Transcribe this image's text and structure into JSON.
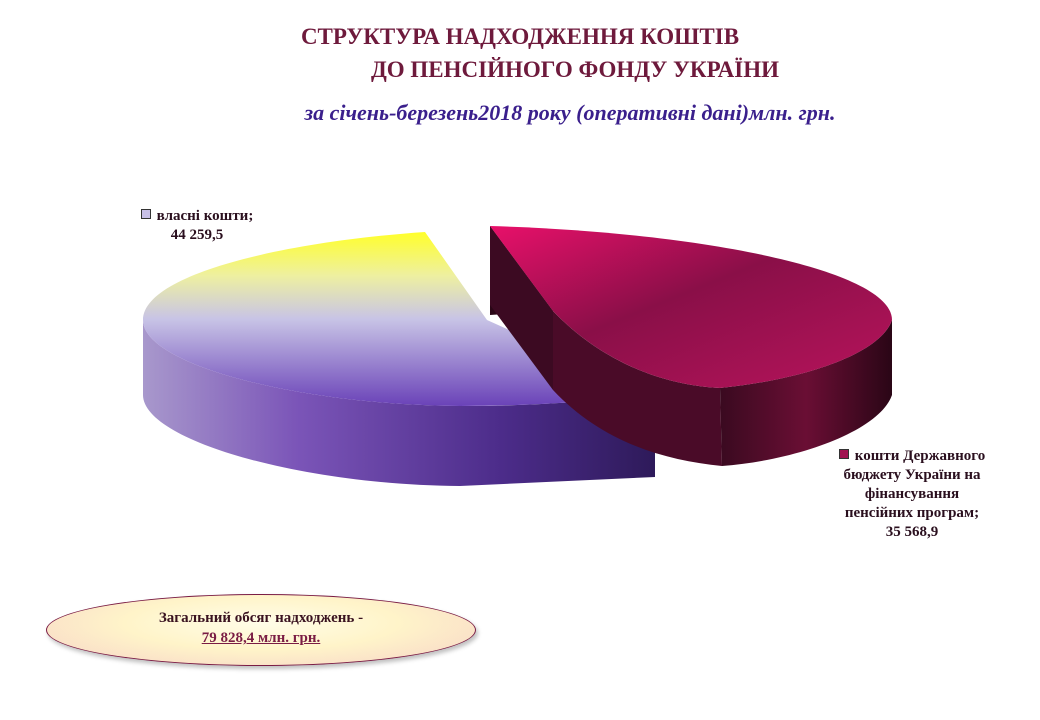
{
  "title_line1": "СТРУКТУРА  НАДХОДЖЕННЯ КОШТІВ",
  "title_line2": "ДО ПЕНСІЙНОГО ФОНДУ УКРАЇНИ",
  "subtitle": "за  січень-березень2018 року (оперативні дані)млн. грн.",
  "total_label": "Загальний обсяг надходжень -",
  "total_value": "79 828,4 млн. грн.",
  "chart_data": {
    "type": "pie",
    "slices": [
      {
        "name": "власні кошти;",
        "value": 44259.5,
        "value_label": "44 259,5",
        "color_top": "#8e6ed8",
        "color_side": "#4f2f8a"
      },
      {
        "name": "кошти Державного бюджету України на фінансування пенсійних програм;",
        "name_lines": [
          "кошти Державного",
          "бюджету України на",
          "фінансування",
          "пенсійних програм;"
        ],
        "value": 35568.9,
        "value_label": "35 568,9",
        "color_top": "#b5145a",
        "color_side": "#5a0a2c"
      }
    ]
  }
}
